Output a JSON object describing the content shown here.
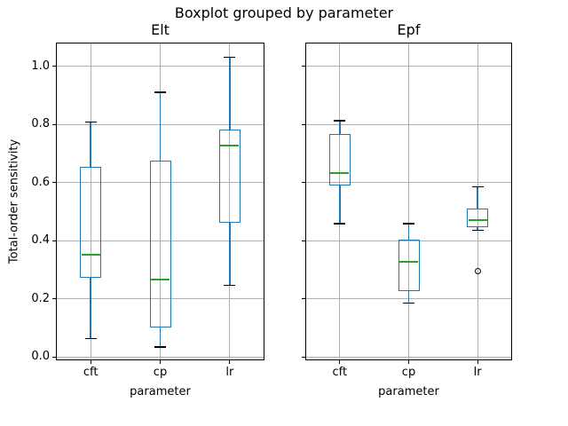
{
  "figure": {
    "title": "Boxplot grouped by parameter",
    "ylabel": "Total-order sensitivity"
  },
  "colors": {
    "box": "#1f77b4",
    "whisker": "#1f77b4",
    "median": "#2ca02c",
    "cap": "#000000",
    "flier": "#000000",
    "grid": "#b0b0b0",
    "spine": "#000000",
    "text": "#000000",
    "background": "#ffffff"
  },
  "chart_data": [
    {
      "type": "boxplot",
      "title": "Elt",
      "xlabel": "parameter",
      "ylabel": "Total-order sensitivity",
      "categories": [
        "cft",
        "cp",
        "lr"
      ],
      "yticks": [
        0.0,
        0.2,
        0.4,
        0.6,
        0.8,
        1.0
      ],
      "ylim": [
        -0.011,
        1.081
      ],
      "grid": true,
      "show_ytick_labels": true,
      "boxes": [
        {
          "category": "cft",
          "whislo": 0.063,
          "q1": 0.272,
          "med": 0.353,
          "q3": 0.653,
          "whishi": 0.808,
          "fliers": []
        },
        {
          "category": "cp",
          "whislo": 0.035,
          "q1": 0.103,
          "med": 0.266,
          "q3": 0.675,
          "whishi": 0.91,
          "fliers": []
        },
        {
          "category": "lr",
          "whislo": 0.246,
          "q1": 0.462,
          "med": 0.726,
          "q3": 0.782,
          "whishi": 1.03,
          "fliers": []
        }
      ]
    },
    {
      "type": "boxplot",
      "title": "Epf",
      "xlabel": "parameter",
      "ylabel": "",
      "categories": [
        "cft",
        "cp",
        "lr"
      ],
      "yticks": [
        0.0,
        0.2,
        0.4,
        0.6,
        0.8,
        1.0
      ],
      "ylim": [
        -0.011,
        1.081
      ],
      "grid": true,
      "show_ytick_labels": false,
      "boxes": [
        {
          "category": "cft",
          "whislo": 0.458,
          "q1": 0.59,
          "med": 0.632,
          "q3": 0.766,
          "whishi": 0.812,
          "fliers": []
        },
        {
          "category": "cp",
          "whislo": 0.186,
          "q1": 0.226,
          "med": 0.328,
          "q3": 0.404,
          "whishi": 0.458,
          "fliers": []
        },
        {
          "category": "lr",
          "whislo": 0.436,
          "q1": 0.447,
          "med": 0.47,
          "q3": 0.512,
          "whishi": 0.585,
          "fliers": [
            0.296
          ]
        }
      ]
    }
  ]
}
